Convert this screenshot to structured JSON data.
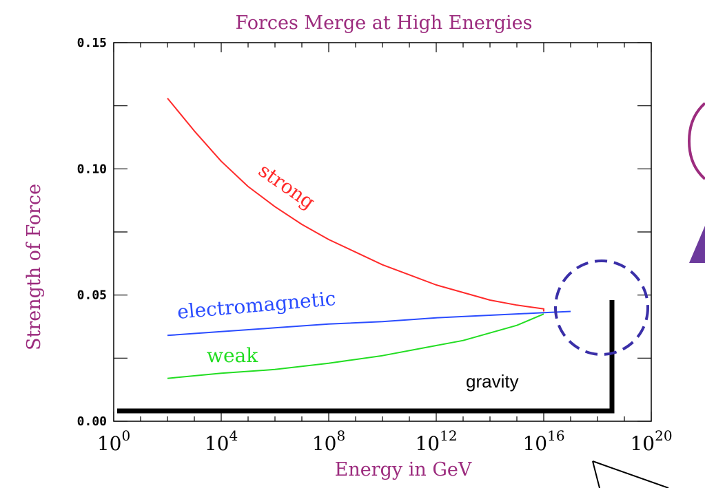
{
  "chart_data": {
    "type": "line",
    "title": "Forces Merge at High Energies",
    "xlabel": "Energy in GeV",
    "ylabel": "Strength of Force",
    "x_scale": "log",
    "xlim": [
      1,
      1e+20
    ],
    "ylim": [
      0,
      0.15
    ],
    "grid": false,
    "x_ticks": [
      {
        "value": 1,
        "base": "10",
        "exp": "0"
      },
      {
        "value": 10000.0,
        "base": "10",
        "exp": "4"
      },
      {
        "value": 100000000.0,
        "base": "10",
        "exp": "8"
      },
      {
        "value": 1000000000000.0,
        "base": "10",
        "exp": "12"
      },
      {
        "value": 1e+16,
        "base": "10",
        "exp": "16"
      },
      {
        "value": 1e+20,
        "base": "10",
        "exp": "20"
      }
    ],
    "y_ticks": [
      {
        "value": 0.0,
        "label": "0.00"
      },
      {
        "value": 0.05,
        "label": "0.05"
      },
      {
        "value": 0.1,
        "label": "0.10"
      },
      {
        "value": 0.15,
        "label": "0.15"
      }
    ],
    "series": [
      {
        "name": "strong",
        "color": "#ff2a2a",
        "x": [
          100.0,
          1000.0,
          10000.0,
          100000.0,
          1000000.0,
          10000000.0,
          100000000.0,
          1000000000.0,
          10000000000.0,
          100000000000.0,
          1000000000000.0,
          10000000000000.0,
          100000000000000.0,
          1000000000000000.0,
          1e+16,
          1e+16
        ],
        "y": [
          0.128,
          0.115,
          0.103,
          0.093,
          0.085,
          0.078,
          0.072,
          0.067,
          0.062,
          0.058,
          0.054,
          0.051,
          0.048,
          0.046,
          0.0445,
          0.0435
        ]
      },
      {
        "name": "electromagnetic",
        "color": "#2a4cff",
        "x": [
          100.0,
          10000.0,
          1000000.0,
          100000000.0,
          10000000000.0,
          1000000000000.0,
          100000000000000.0,
          1e+16,
          1e+17
        ],
        "y": [
          0.034,
          0.0355,
          0.037,
          0.0385,
          0.0395,
          0.041,
          0.042,
          0.043,
          0.0435
        ]
      },
      {
        "name": "weak",
        "color": "#22dd22",
        "x": [
          100.0,
          10000.0,
          1000000.0,
          100000000.0,
          10000000000.0,
          1000000000000.0,
          10000000000000.0,
          100000000000000.0,
          1000000000000000.0,
          1e+16
        ],
        "y": [
          0.017,
          0.019,
          0.0205,
          0.023,
          0.026,
          0.03,
          0.032,
          0.035,
          0.038,
          0.0425
        ]
      }
    ],
    "annotations": {
      "gravity_label": "gravity",
      "gravity_color": "#000000",
      "highlight_circle_color": "#3a2fa8",
      "series_label_colors": {
        "strong": "#ff2a2a",
        "electromagnetic": "#2a4cff",
        "weak": "#22dd22"
      }
    },
    "colors": {
      "text": "#9c2c7e",
      "axis": "#000000"
    }
  }
}
